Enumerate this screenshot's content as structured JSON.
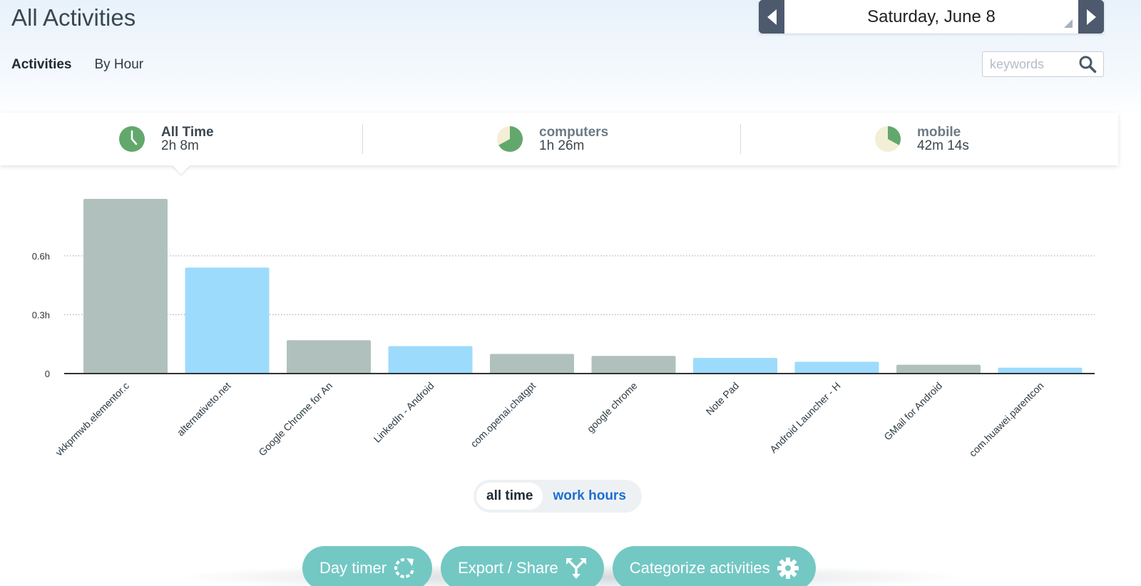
{
  "header": {
    "title": "All Activities",
    "date_label": "Saturday, June 8"
  },
  "tabs": [
    {
      "label": "Activities",
      "active": true
    },
    {
      "label": "By Hour",
      "active": false
    }
  ],
  "search": {
    "placeholder": "keywords",
    "value": ""
  },
  "summary": [
    {
      "label": "All Time",
      "value": "2h 8m",
      "icon": "clock-icon"
    },
    {
      "label": "computers",
      "value": "1h 26m",
      "icon": "pie-icon",
      "fraction": 0.67
    },
    {
      "label": "mobile",
      "value": "42m 14s",
      "icon": "pie-icon",
      "fraction": 0.33
    }
  ],
  "colors": {
    "green": "#62a86c",
    "pie_bg": "#f3eed6",
    "bar_gray": "#b0c1bd",
    "bar_blue": "#9ddbfc",
    "teal": "#73c8c4"
  },
  "chart_data": {
    "type": "bar",
    "categories": [
      "vkkprmwb.elementor.c",
      "alternativeto.net",
      "Google Chrome for An",
      "LinkedIn - Android",
      "com.openai.chatgpt",
      "google chrome",
      "Note Pad",
      "Android Launcher - H",
      "GMail for Android",
      "com.huawei.parentcon"
    ],
    "values": [
      0.89,
      0.54,
      0.17,
      0.14,
      0.1,
      0.09,
      0.08,
      0.06,
      0.045,
      0.03
    ],
    "bar_colors": [
      "#b0c1bd",
      "#9ddbfc",
      "#b0c1bd",
      "#9ddbfc",
      "#b0c1bd",
      "#b0c1bd",
      "#9ddbfc",
      "#9ddbfc",
      "#b0c1bd",
      "#9ddbfc"
    ],
    "yticks": [
      {
        "value": 0,
        "label": "0"
      },
      {
        "value": 0.3,
        "label": "0.3h"
      },
      {
        "value": 0.6,
        "label": "0.6h"
      }
    ],
    "ylim": [
      0,
      0.89
    ],
    "grid": true
  },
  "range_toggle": {
    "options": [
      "all time",
      "work hours"
    ],
    "selected": 0
  },
  "actions": [
    {
      "label": "Day timer",
      "icon": "refresh-icon"
    },
    {
      "label": "Export / Share",
      "icon": "share-icon"
    },
    {
      "label": "Categorize activities",
      "icon": "gear-icon"
    }
  ]
}
